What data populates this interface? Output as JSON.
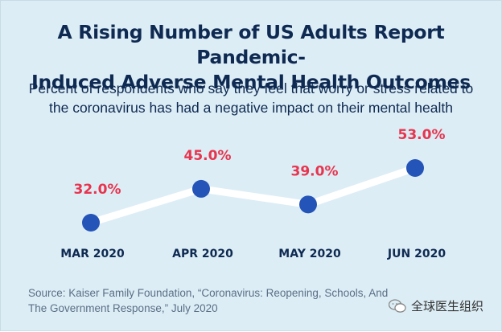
{
  "title_line1": "A Rising Number of US Adults Report Pandemic-",
  "title_line2": "Induced Adverse Mental Health Outcomes",
  "subtitle_line1": "Percent of respondents who say they feel that worry or stress related to",
  "subtitle_line2": "the coronavirus has had a negative impact on their mental health",
  "source_line1": "Source: Kaiser Family Foundation, “Coronavirus: Reopening, Schools, And",
  "source_line2": "The Government Response,” July 2020",
  "watermark_text": "全球医生组织",
  "colors": {
    "background": "#dcedf5",
    "title": "#0f2a52",
    "point": "#2554b8",
    "value_label": "#e8344e",
    "line": "#ffffff"
  },
  "chart_data": {
    "type": "line",
    "categories": [
      "MAR 2020",
      "APR 2020",
      "MAY 2020",
      "JUN 2020"
    ],
    "values": [
      32.0,
      45.0,
      39.0,
      53.0
    ],
    "value_labels": [
      "32.0%",
      "45.0%",
      "39.0%",
      "53.0%"
    ],
    "unit": "%",
    "xlabel": "",
    "ylabel": "",
    "grid": false,
    "legend": "none"
  }
}
